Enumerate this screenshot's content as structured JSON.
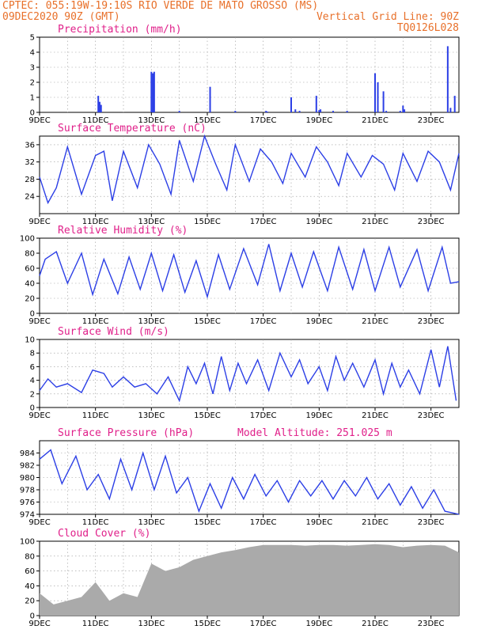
{
  "header": {
    "line1": "CPTEC:  055:19W-19:10S  RIO VERDE DE MATO GROSSO (MS)",
    "date": "09DEC2020 90Z (GMT)",
    "grid_line": "Vertical Grid Line: 90Z",
    "code": "TQ0126L028"
  },
  "x_labels": [
    "9DEC",
    "11DEC",
    "13DEC",
    "15DEC",
    "17DEC",
    "19DEC",
    "21DEC",
    "23DEC"
  ],
  "colors": {
    "line": "#2c3fe6",
    "title": "#e0208a",
    "header": "#e8702a",
    "cloud": "#aaaaaa",
    "grid": "#999999"
  },
  "chart_data": [
    {
      "type": "bar",
      "title": "Precipitation (mm/h)",
      "ylim": [
        0,
        5
      ],
      "yticks": [
        0,
        1,
        2,
        3,
        4,
        5
      ],
      "x_unit": "days since 9DEC",
      "xlim": [
        0,
        15
      ],
      "x": [
        2.1,
        2.15,
        2.2,
        4.0,
        4.05,
        4.1,
        5.0,
        6.1,
        7.0,
        8.1,
        8.15,
        9.0,
        9.15,
        9.3,
        9.9,
        10.0,
        10.05,
        10.5,
        11.0,
        12.0,
        12.1,
        12.3,
        12.4,
        12.9,
        13.0,
        13.05,
        14.6,
        14.7,
        14.85
      ],
      "values": [
        1.1,
        0.7,
        0.5,
        2.7,
        2.6,
        2.7,
        0.1,
        1.7,
        0.1,
        0.1,
        0.05,
        1.0,
        0.2,
        0.1,
        1.1,
        0.15,
        0.2,
        0.1,
        0.1,
        2.6,
        2.0,
        1.4,
        0.1,
        0.1,
        0.45,
        0.2,
        4.4,
        0.3,
        1.1
      ]
    },
    {
      "type": "line",
      "title": "Surface Temperature (nC)",
      "ylim": [
        20,
        38
      ],
      "yticks": [
        24,
        28,
        32,
        36
      ],
      "x": [
        0,
        0.3,
        0.6,
        1.0,
        1.5,
        2.0,
        2.3,
        2.6,
        3.0,
        3.5,
        3.9,
        4.3,
        4.7,
        5.0,
        5.5,
        5.9,
        6.3,
        6.7,
        7.0,
        7.5,
        7.9,
        8.3,
        8.7,
        9.0,
        9.5,
        9.9,
        10.3,
        10.7,
        11.0,
        11.5,
        11.9,
        12.3,
        12.7,
        13.0,
        13.5,
        13.9,
        14.3,
        14.7,
        15.0
      ],
      "values": [
        28.5,
        22.5,
        26,
        35.5,
        24.5,
        33.5,
        34.5,
        23,
        34.5,
        26,
        36,
        31.5,
        24.5,
        37,
        27.5,
        38,
        31.5,
        25.5,
        36,
        27.5,
        35,
        32,
        27,
        34,
        28.5,
        35.5,
        32,
        26.5,
        34,
        28.5,
        33.5,
        31.5,
        25.5,
        34,
        27.5,
        34.5,
        32,
        25.5,
        34
      ]
    },
    {
      "type": "line",
      "title": "Relative Humidity (%)",
      "ylim": [
        0,
        100
      ],
      "yticks": [
        0,
        20,
        40,
        60,
        80,
        100
      ],
      "x": [
        0,
        0.2,
        0.6,
        1.0,
        1.5,
        1.9,
        2.3,
        2.8,
        3.2,
        3.6,
        4.0,
        4.4,
        4.8,
        5.2,
        5.6,
        6.0,
        6.4,
        6.8,
        7.3,
        7.8,
        8.2,
        8.6,
        9.0,
        9.4,
        9.8,
        10.3,
        10.7,
        11.2,
        11.6,
        12.0,
        12.5,
        12.9,
        13.5,
        13.9,
        14.4,
        14.7,
        15.0
      ],
      "values": [
        50,
        72,
        82,
        40,
        80,
        25,
        72,
        26,
        75,
        32,
        80,
        30,
        78,
        28,
        70,
        22,
        78,
        32,
        86,
        38,
        92,
        30,
        80,
        35,
        82,
        30,
        88,
        32,
        85,
        30,
        88,
        35,
        85,
        30,
        88,
        40,
        42
      ]
    },
    {
      "type": "line",
      "title": "Surface Wind (m/s)",
      "ylim": [
        0,
        10
      ],
      "yticks": [
        0,
        2,
        4,
        6,
        8,
        10
      ],
      "x": [
        0,
        0.3,
        0.6,
        1.0,
        1.5,
        1.9,
        2.3,
        2.6,
        3.0,
        3.4,
        3.8,
        4.2,
        4.6,
        5.0,
        5.3,
        5.6,
        5.9,
        6.2,
        6.5,
        6.8,
        7.1,
        7.4,
        7.8,
        8.2,
        8.6,
        9.0,
        9.3,
        9.6,
        10.0,
        10.3,
        10.6,
        10.9,
        11.2,
        11.6,
        12.0,
        12.3,
        12.6,
        12.9,
        13.2,
        13.6,
        14.0,
        14.3,
        14.6,
        14.9
      ],
      "values": [
        2.5,
        4.2,
        3.0,
        3.5,
        2.2,
        5.5,
        5.0,
        3.0,
        4.5,
        3.0,
        3.5,
        2.0,
        4.5,
        1.0,
        6.0,
        3.5,
        6.5,
        2.0,
        7.5,
        2.5,
        6.5,
        3.5,
        7.0,
        2.5,
        8.0,
        4.5,
        7.0,
        3.5,
        6.0,
        2.5,
        7.5,
        4.0,
        6.5,
        3.0,
        7.0,
        2.0,
        6.5,
        3.0,
        5.5,
        2.0,
        8.5,
        3.0,
        9.0,
        1.0
      ]
    },
    {
      "type": "line",
      "title": "Surface Pressure (hPa)",
      "ylim": [
        974,
        986
      ],
      "yticks": [
        974,
        976,
        978,
        980,
        982,
        984
      ],
      "annotation": "Model Altitude: 251.025 m",
      "x": [
        0,
        0.4,
        0.8,
        1.3,
        1.7,
        2.1,
        2.5,
        2.9,
        3.3,
        3.7,
        4.1,
        4.5,
        4.9,
        5.3,
        5.7,
        6.1,
        6.5,
        6.9,
        7.3,
        7.7,
        8.1,
        8.5,
        8.9,
        9.3,
        9.7,
        10.1,
        10.5,
        10.9,
        11.3,
        11.7,
        12.1,
        12.5,
        12.9,
        13.3,
        13.7,
        14.1,
        14.5,
        15.0
      ],
      "values": [
        983,
        984.5,
        979,
        983.5,
        978,
        980.5,
        976.5,
        983,
        978,
        984,
        978,
        983.5,
        977.5,
        980,
        974.5,
        979,
        975,
        980,
        976.5,
        980.5,
        977,
        979.5,
        976,
        979.5,
        977,
        979.5,
        976.5,
        979.5,
        977,
        980,
        976.5,
        979,
        975.5,
        978.5,
        975,
        978,
        974.5,
        974
      ]
    },
    {
      "type": "area",
      "title": "Cloud Cover (%)",
      "ylim": [
        0,
        100
      ],
      "yticks": [
        0,
        20,
        40,
        60,
        80,
        100
      ],
      "x": [
        0,
        0.5,
        1.0,
        1.5,
        2.0,
        2.5,
        3.0,
        3.5,
        4.0,
        4.5,
        5.0,
        5.5,
        6.0,
        6.5,
        7.0,
        7.5,
        8.0,
        8.5,
        9.0,
        9.5,
        10.0,
        10.5,
        11.0,
        11.5,
        12.0,
        12.5,
        13.0,
        13.5,
        14.0,
        14.5,
        15.0
      ],
      "values": [
        30,
        15,
        20,
        25,
        45,
        20,
        30,
        25,
        70,
        60,
        65,
        75,
        80,
        85,
        88,
        92,
        95,
        95,
        95,
        94,
        95,
        95,
        94,
        95,
        96,
        95,
        92,
        94,
        95,
        94,
        85
      ]
    }
  ]
}
